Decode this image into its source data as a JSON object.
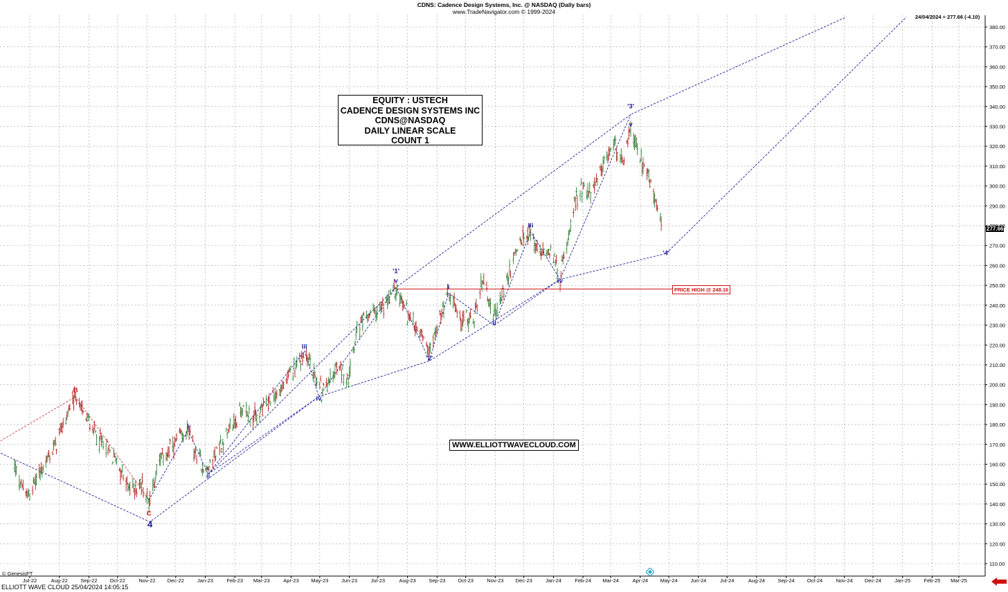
{
  "header": {
    "title": "CDNS:  Cadence Design Systems, Inc. @ NASDAQ  (Daily bars)",
    "subtitle": "www.TradeNavigator.com © 1999-2024"
  },
  "last_quote": "24/04/2024 = 277.66 (-4.10)",
  "price_tag": "277.66",
  "info_box": [
    "EQUITY : USTECH",
    "CADENCE DESIGN SYSTEMS INC",
    "CDNS@NASDAQ",
    "DAILY LINEAR SCALE",
    "COUNT 1"
  ],
  "website": "WWW.ELLIOTTWAVECLOUD.COM",
  "price_high_label": "PRICE HIGH @ 248.16",
  "copyright": "© GenesisFT",
  "footer": "ELLIOTT WAVE CLOUD   25/04/2024 14:05:15",
  "colors": {
    "up": "#2e7d32",
    "down": "#b71c1c",
    "wave": "#1a1a9a",
    "resistance": "#d01010",
    "grid": "#9e9e9e"
  },
  "chart_data": {
    "type": "line",
    "ylim": [
      105,
      385
    ],
    "y_ticks": [
      110,
      120,
      130,
      140,
      150,
      160,
      170,
      180,
      190,
      200,
      210,
      220,
      230,
      240,
      250,
      260,
      270,
      280,
      290,
      300,
      310,
      320,
      330,
      340,
      350,
      360,
      370,
      380
    ],
    "x_months": [
      "Jul-22",
      "Aug-22",
      "Sep-22",
      "Oct-22",
      "Nov-22",
      "Dec-22",
      "Jan-23",
      "Feb-23",
      "Mar-23",
      "Apr-23",
      "May-23",
      "Jun-23",
      "Jul-23",
      "Aug-23",
      "Sep-23",
      "Oct-23",
      "Nov-23",
      "Dec-23",
      "Jan-24",
      "Feb-24",
      "Mar-24",
      "Apr-24",
      "May-24",
      "Jun-24",
      "Jul-24",
      "Aug-24",
      "Sep-24",
      "Oct-24",
      "Nov-24",
      "Dec-24",
      "Jan-25",
      "Feb-25",
      "Mar-25"
    ],
    "price_path": [
      [
        "2022-06-15",
        158
      ],
      [
        "2022-06-28",
        143
      ],
      [
        "2022-07-12",
        156
      ],
      [
        "2022-07-26",
        168
      ],
      [
        "2022-08-10",
        186
      ],
      [
        "2022-08-18",
        194
      ],
      [
        "2022-09-02",
        180
      ],
      [
        "2022-09-15",
        170
      ],
      [
        "2022-09-30",
        162
      ],
      [
        "2022-10-13",
        147
      ],
      [
        "2022-10-27",
        150
      ],
      [
        "2022-11-03",
        141
      ],
      [
        "2022-11-14",
        162
      ],
      [
        "2022-11-30",
        170
      ],
      [
        "2022-12-14",
        177
      ],
      [
        "2022-12-23",
        163
      ],
      [
        "2023-01-04",
        157
      ],
      [
        "2023-01-12",
        166
      ],
      [
        "2023-01-26",
        177
      ],
      [
        "2023-02-09",
        188
      ],
      [
        "2023-02-23",
        183
      ],
      [
        "2023-03-09",
        192
      ],
      [
        "2023-03-23",
        198
      ],
      [
        "2023-04-06",
        210
      ],
      [
        "2023-04-17",
        216
      ],
      [
        "2023-04-26",
        204
      ],
      [
        "2023-05-04",
        196
      ],
      [
        "2023-05-18",
        208
      ],
      [
        "2023-05-31",
        205
      ],
      [
        "2023-06-08",
        226
      ],
      [
        "2023-06-22",
        236
      ],
      [
        "2023-07-07",
        238
      ],
      [
        "2023-07-19",
        248
      ],
      [
        "2023-08-03",
        234
      ],
      [
        "2023-08-16",
        226
      ],
      [
        "2023-08-24",
        218
      ],
      [
        "2023-09-05",
        235
      ],
      [
        "2023-09-13",
        246
      ],
      [
        "2023-09-27",
        232
      ],
      [
        "2023-10-10",
        233
      ],
      [
        "2023-10-19",
        254
      ],
      [
        "2023-10-31",
        234
      ],
      [
        "2023-11-13",
        252
      ],
      [
        "2023-11-27",
        272
      ],
      [
        "2023-12-08",
        276
      ],
      [
        "2023-12-18",
        265
      ],
      [
        "2023-12-29",
        270
      ],
      [
        "2024-01-08",
        253
      ],
      [
        "2024-01-22",
        290
      ],
      [
        "2024-02-01",
        300
      ],
      [
        "2024-02-09",
        296
      ],
      [
        "2024-02-20",
        306
      ],
      [
        "2024-03-04",
        322
      ],
      [
        "2024-03-15",
        312
      ],
      [
        "2024-03-22",
        328
      ],
      [
        "2024-04-01",
        314
      ],
      [
        "2024-04-10",
        304
      ],
      [
        "2024-04-24",
        278
      ]
    ],
    "wave_labels": [
      {
        "text": "B",
        "x": "2022-08-18",
        "y": 197,
        "color": "red"
      },
      {
        "text": "C",
        "x": "2022-11-03",
        "y": 135,
        "color": "red"
      },
      {
        "text": "4",
        "x": "2022-11-04",
        "y": 130,
        "color": "blue",
        "size": "big"
      },
      {
        "text": "i",
        "x": "2022-12-14",
        "y": 179,
        "color": "blue"
      },
      {
        "text": "ii",
        "x": "2023-01-04",
        "y": 154,
        "color": "blue"
      },
      {
        "text": "iii",
        "x": "2023-04-15",
        "y": 219,
        "color": "blue"
      },
      {
        "text": "iv",
        "x": "2023-04-30",
        "y": 193,
        "color": "blue"
      },
      {
        "text": "'1'",
        "x": "2023-07-20",
        "y": 257,
        "color": "blue"
      },
      {
        "text": "v",
        "x": "2023-07-20",
        "y": 252,
        "color": "blue"
      },
      {
        "text": "'2'",
        "x": "2023-08-24",
        "y": 213,
        "color": "blue"
      },
      {
        "text": "i",
        "x": "2023-09-13",
        "y": 249,
        "color": "blue"
      },
      {
        "text": "ii",
        "x": "2023-10-31",
        "y": 231,
        "color": "blue"
      },
      {
        "text": "iii",
        "x": "2023-12-08",
        "y": 280,
        "color": "blue"
      },
      {
        "text": "iv",
        "x": "2024-01-08",
        "y": 252,
        "color": "blue"
      },
      {
        "text": "'3'",
        "x": "2024-03-22",
        "y": 340,
        "color": "blue"
      },
      {
        "text": "v",
        "x": "2024-03-22",
        "y": 331,
        "color": "blue"
      },
      {
        "text": "'4'",
        "x": "2024-04-28",
        "y": 266,
        "color": "blue"
      }
    ],
    "wave_lines": [
      [
        [
          "2022-05-25",
          167
        ],
        [
          "2022-11-04",
          131
        ],
        [
          "2023-04-30",
          194
        ],
        [
          "2023-08-24",
          212
        ],
        [
          "2024-01-08",
          253
        ],
        [
          "2024-04-28",
          266
        ],
        [
          "2025-01-05",
          385
        ]
      ],
      [
        [
          "2022-05-25",
          170
        ],
        [
          "2022-08-18",
          194
        ],
        [
          "2022-11-03",
          142
        ]
      ],
      [
        [
          "2022-11-03",
          142
        ],
        [
          "2022-12-14",
          177
        ],
        [
          "2023-01-04",
          155
        ],
        [
          "2023-04-15",
          217
        ],
        [
          "2023-04-30",
          194
        ],
        [
          "2023-07-20",
          249
        ],
        [
          "2023-08-24",
          212
        ],
        [
          "2023-09-13",
          246
        ],
        [
          "2023-10-31",
          230
        ],
        [
          "2023-12-08",
          277
        ],
        [
          "2024-01-08",
          253
        ],
        [
          "2024-03-22",
          336
        ]
      ],
      [
        [
          "2023-01-04",
          155
        ],
        [
          "2023-07-20",
          249
        ],
        [
          "2024-03-22",
          336
        ],
        [
          "2024-11-03",
          385
        ]
      ],
      [
        [
          "2023-01-04",
          155
        ],
        [
          "2023-04-30",
          194
        ]
      ],
      [
        [
          "2023-10-31",
          230
        ],
        [
          "2024-01-08",
          253
        ]
      ]
    ],
    "price_high_line": {
      "value": 248.16,
      "from": "2023-07-20",
      "to": "2024-05-28"
    }
  }
}
